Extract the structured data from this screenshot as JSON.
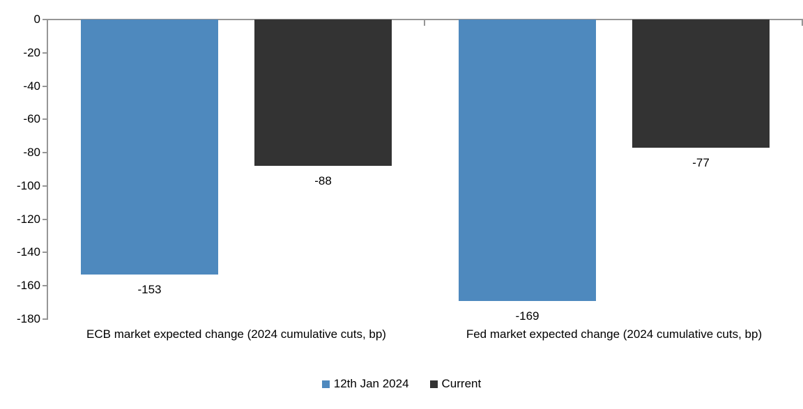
{
  "chart_data": {
    "type": "bar",
    "title": "",
    "xlabel": "",
    "ylabel": "",
    "categories": [
      "ECB market expected change (2024 cumulative cuts, bp)",
      "Fed market expected change (2024 cumulative cuts, bp)"
    ],
    "series": [
      {
        "name": "12th Jan 2024",
        "color": "#4E89BE",
        "values": [
          -153,
          -169
        ],
        "data_labels": [
          "-153",
          "-169"
        ]
      },
      {
        "name": "Current",
        "color": "#333333",
        "values": [
          -88,
          -77
        ],
        "data_labels": [
          "-88",
          "-77"
        ]
      }
    ],
    "y_ticks": [
      "0",
      "-20",
      "-40",
      "-60",
      "-80",
      "-100",
      "-120",
      "-140",
      "-160",
      "-180"
    ],
    "ylim": [
      -180,
      0
    ],
    "y_tick_step": 20,
    "grid": false,
    "legend_position": "bottom",
    "axis_color": "#969696",
    "label_color": "#000000",
    "background_color": "#ffffff"
  }
}
